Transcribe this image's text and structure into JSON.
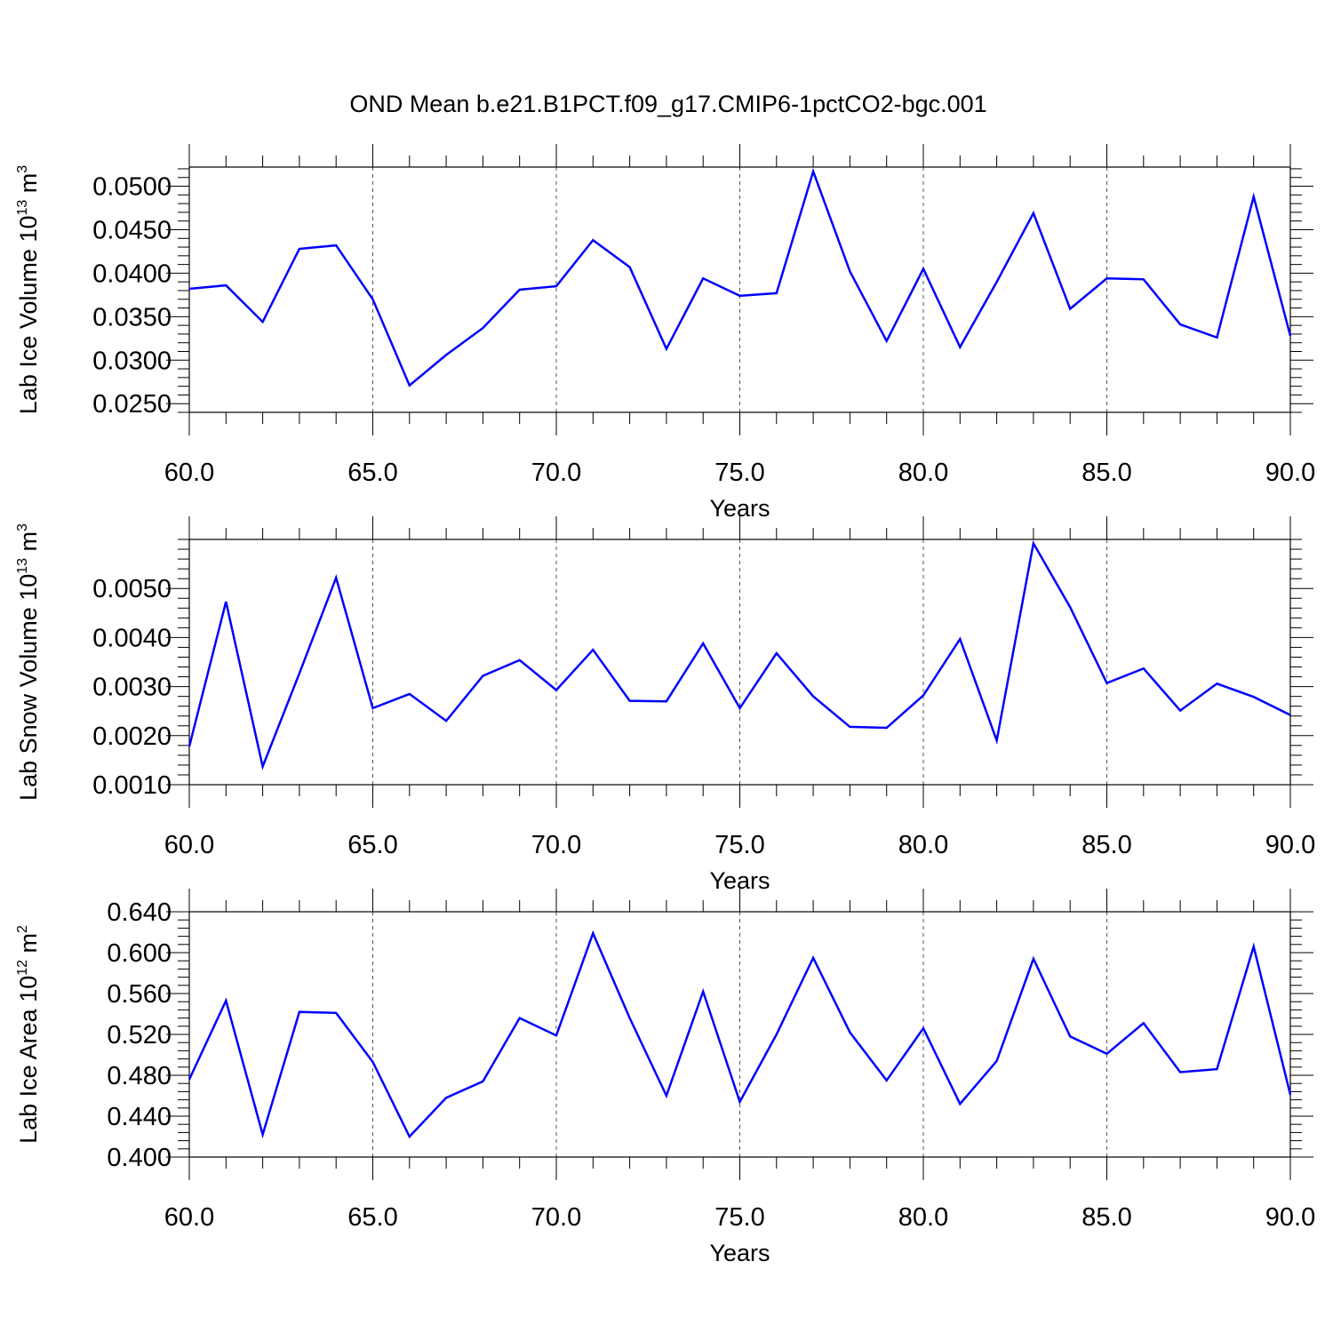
{
  "title": "OND Mean b.e21.B1PCT.f09_g17.CMIP6-1pctCO2-bgc.001",
  "colors": {
    "series": "#0000ff",
    "axes": "#000000",
    "grid": "#555555"
  },
  "chart_data": [
    {
      "type": "line",
      "xlabel": "Years",
      "ylabel": {
        "text": "Lab Ice Volume 10",
        "exp": "13",
        "unit": " m",
        "unit_exp": "3"
      },
      "xlim": [
        60,
        90
      ],
      "ylim": [
        0.024,
        0.0522
      ],
      "xticks": [
        60,
        65,
        70,
        75,
        80,
        85,
        90
      ],
      "xtick_labels": [
        "60.0",
        "65.0",
        "70.0",
        "75.0",
        "80.0",
        "85.0",
        "90.0"
      ],
      "yticks": [
        0.025,
        0.03,
        0.035,
        0.04,
        0.045,
        0.05
      ],
      "ytick_labels": [
        "0.0250",
        "0.0300",
        "0.0350",
        "0.0400",
        "0.0450",
        "0.0500"
      ],
      "grid": "vertical dashed at major x ticks",
      "x": [
        60,
        61,
        62,
        63,
        64,
        65,
        66,
        67,
        68,
        69,
        70,
        71,
        72,
        73,
        74,
        75,
        76,
        77,
        78,
        79,
        80,
        81,
        82,
        83,
        84,
        85,
        86,
        87,
        88,
        89,
        90
      ],
      "series": [
        {
          "values": [
            0.0382,
            0.0386,
            0.0344,
            0.0428,
            0.0432,
            0.037,
            0.0271,
            0.0306,
            0.0337,
            0.0381,
            0.0385,
            0.0438,
            0.0407,
            0.0313,
            0.0394,
            0.0374,
            0.0377,
            0.0517,
            0.0402,
            0.0322,
            0.0405,
            0.0315,
            0.039,
            0.0469,
            0.0359,
            0.0394,
            0.0393,
            0.0341,
            0.0326,
            0.0488,
            0.0328
          ]
        }
      ]
    },
    {
      "type": "line",
      "xlabel": "Years",
      "ylabel": {
        "text": "Lab Snow Volume 10",
        "exp": "13",
        "unit": " m",
        "unit_exp": "3"
      },
      "xlim": [
        60,
        90
      ],
      "ylim": [
        0.001,
        0.006
      ],
      "xticks": [
        60,
        65,
        70,
        75,
        80,
        85,
        90
      ],
      "xtick_labels": [
        "60.0",
        "65.0",
        "70.0",
        "75.0",
        "80.0",
        "85.0",
        "90.0"
      ],
      "yticks": [
        0.001,
        0.002,
        0.003,
        0.004,
        0.005
      ],
      "ytick_labels": [
        "0.0010",
        "0.0020",
        "0.0030",
        "0.0040",
        "0.0050"
      ],
      "grid": "vertical dashed at major x ticks",
      "x": [
        60,
        61,
        62,
        63,
        64,
        65,
        66,
        67,
        68,
        69,
        70,
        71,
        72,
        73,
        74,
        75,
        76,
        77,
        78,
        79,
        80,
        81,
        82,
        83,
        84,
        85,
        86,
        87,
        88,
        89,
        90
      ],
      "series": [
        {
          "values": [
            0.00178,
            0.00473,
            0.00137,
            0.00327,
            0.00522,
            0.00256,
            0.00285,
            0.0023,
            0.00322,
            0.00354,
            0.00293,
            0.00375,
            0.00271,
            0.0027,
            0.00388,
            0.00256,
            0.00368,
            0.0028,
            0.00218,
            0.00216,
            0.00282,
            0.00397,
            0.0019,
            0.00592,
            0.00462,
            0.00307,
            0.00337,
            0.00251,
            0.00306,
            0.00279,
            0.00242
          ]
        }
      ]
    },
    {
      "type": "line",
      "xlabel": "Years",
      "ylabel": {
        "text": "Lab Ice Area 10",
        "exp": "12",
        "unit": " m",
        "unit_exp": "2"
      },
      "xlim": [
        60,
        90
      ],
      "ylim": [
        0.4,
        0.64
      ],
      "xticks": [
        60,
        65,
        70,
        75,
        80,
        85,
        90
      ],
      "xtick_labels": [
        "60.0",
        "65.0",
        "70.0",
        "75.0",
        "80.0",
        "85.0",
        "90.0"
      ],
      "yticks": [
        0.4,
        0.44,
        0.48,
        0.52,
        0.56,
        0.6,
        0.64
      ],
      "ytick_labels": [
        "0.400",
        "0.440",
        "0.480",
        "0.520",
        "0.560",
        "0.600",
        "0.640"
      ],
      "grid": "vertical dashed at major x ticks",
      "x": [
        60,
        61,
        62,
        63,
        64,
        65,
        66,
        67,
        68,
        69,
        70,
        71,
        72,
        73,
        74,
        75,
        76,
        77,
        78,
        79,
        80,
        81,
        82,
        83,
        84,
        85,
        86,
        87,
        88,
        89,
        90
      ],
      "series": [
        {
          "values": [
            0.476,
            0.553,
            0.422,
            0.542,
            0.541,
            0.493,
            0.42,
            0.458,
            0.474,
            0.536,
            0.519,
            0.619,
            0.536,
            0.46,
            0.562,
            0.454,
            0.52,
            0.595,
            0.522,
            0.475,
            0.526,
            0.452,
            0.494,
            0.594,
            0.518,
            0.501,
            0.531,
            0.483,
            0.486,
            0.606,
            0.461
          ]
        }
      ]
    }
  ]
}
